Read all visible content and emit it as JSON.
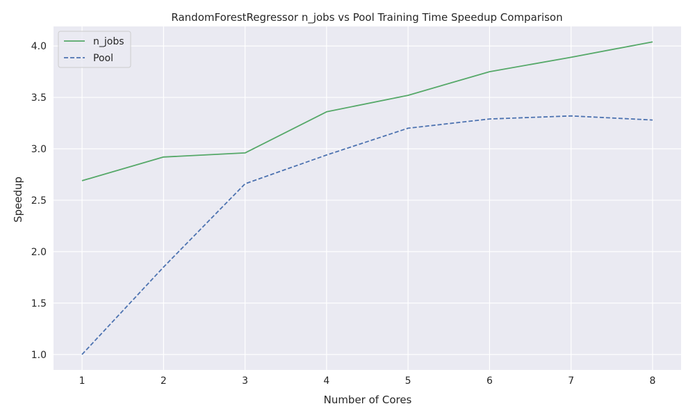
{
  "chart_data": {
    "type": "line",
    "title": "RandomForestRegressor n_jobs vs Pool Training Time Speedup Comparison",
    "xlabel": "Number of Cores",
    "ylabel": "Speedup",
    "x": [
      1,
      2,
      3,
      4,
      5,
      6,
      7,
      8
    ],
    "xlim": [
      0.65,
      8.35
    ],
    "ylim": [
      0.85,
      4.19
    ],
    "xticks": [
      1,
      2,
      3,
      4,
      5,
      6,
      7,
      8
    ],
    "yticks": [
      1.0,
      1.5,
      2.0,
      2.5,
      3.0,
      3.5,
      4.0
    ],
    "ytick_labels": [
      "1.0",
      "1.5",
      "2.0",
      "2.5",
      "3.0",
      "3.5",
      "4.0"
    ],
    "grid": true,
    "legend_position": "upper-left",
    "background": "#eaeaf2",
    "series": [
      {
        "name": "n_jobs",
        "values": [
          2.69,
          2.92,
          2.96,
          3.36,
          3.52,
          3.75,
          3.89,
          4.04
        ],
        "color": "#55a868",
        "style": "solid"
      },
      {
        "name": "Pool",
        "values": [
          1.0,
          1.85,
          2.66,
          2.94,
          3.2,
          3.29,
          3.32,
          3.28
        ],
        "color": "#4c72b0",
        "style": "dashed"
      }
    ]
  }
}
